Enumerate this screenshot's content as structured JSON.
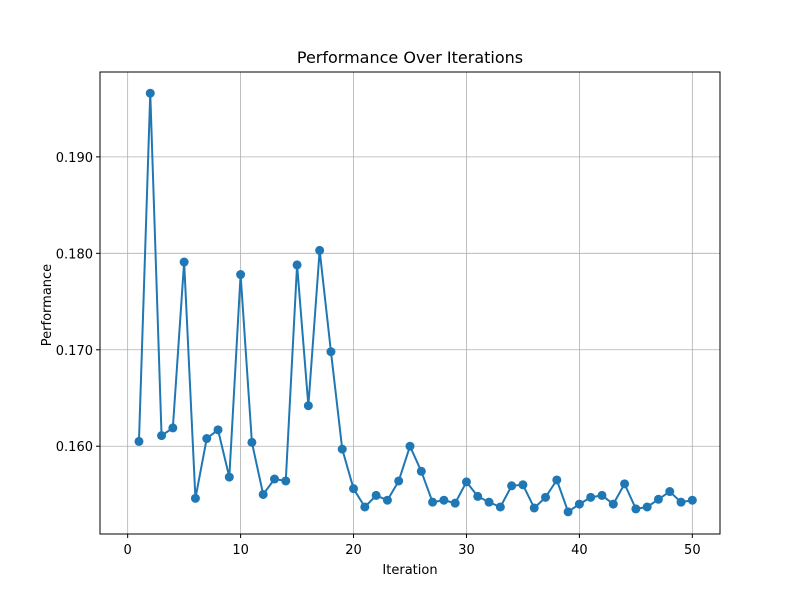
{
  "chart_data": {
    "type": "line",
    "title": "Performance Over Iterations",
    "xlabel": "Iteration",
    "ylabel": "Performance",
    "xlim": [
      -2.45,
      52.45
    ],
    "ylim": [
      0.1509,
      0.1988
    ],
    "x_ticks": [
      0,
      10,
      20,
      30,
      40,
      50
    ],
    "y_ticks": [
      0.16,
      0.17,
      0.18,
      0.19
    ],
    "x_tick_labels": [
      "0",
      "10",
      "20",
      "30",
      "40",
      "50"
    ],
    "y_tick_labels": [
      "0.160",
      "0.170",
      "0.180",
      "0.190"
    ],
    "grid": true,
    "marker": "circle",
    "series": [
      {
        "color": "#1f77b4",
        "x": [
          1,
          2,
          3,
          4,
          5,
          6,
          7,
          8,
          9,
          10,
          11,
          12,
          13,
          14,
          15,
          16,
          17,
          18,
          19,
          20,
          21,
          22,
          23,
          24,
          25,
          26,
          27,
          28,
          29,
          30,
          31,
          32,
          33,
          34,
          35,
          36,
          37,
          38,
          39,
          40,
          41,
          42,
          43,
          44,
          45,
          46,
          47,
          48,
          49,
          50
        ],
        "y": [
          0.1605,
          0.1966,
          0.1611,
          0.1619,
          0.1791,
          0.1546,
          0.1608,
          0.1617,
          0.1568,
          0.1778,
          0.1604,
          0.155,
          0.1566,
          0.1564,
          0.1788,
          0.1642,
          0.1803,
          0.1698,
          0.1597,
          0.1556,
          0.1537,
          0.1549,
          0.1544,
          0.1564,
          0.16,
          0.1574,
          0.1542,
          0.1544,
          0.1541,
          0.1563,
          0.1548,
          0.1542,
          0.1537,
          0.1559,
          0.156,
          0.1536,
          0.1547,
          0.1565,
          0.1532,
          0.154,
          0.1547,
          0.1549,
          0.154,
          0.1561,
          0.1535,
          0.1537,
          0.1545,
          0.1553,
          0.1542,
          0.1544
        ]
      }
    ]
  }
}
